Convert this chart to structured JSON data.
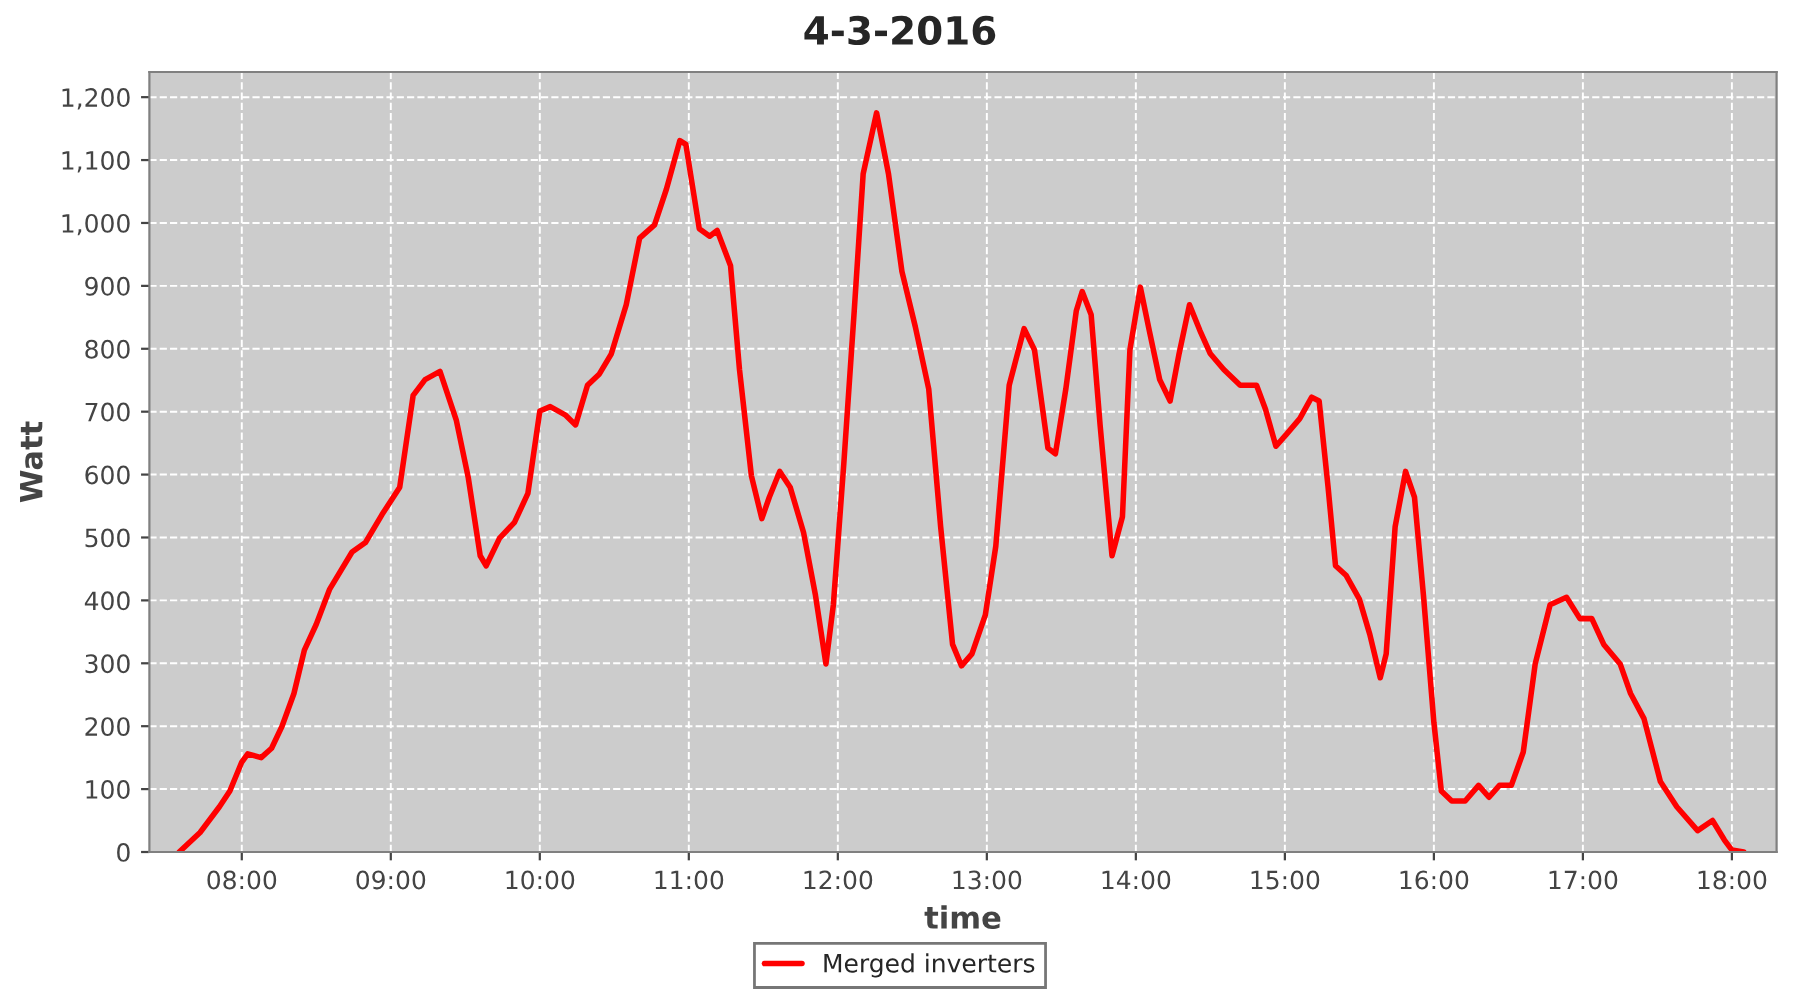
{
  "chart_data": {
    "type": "line",
    "title": "4-3-2016",
    "xlabel": "time",
    "ylabel": "Watt",
    "x": [
      7.58,
      7.72,
      7.85,
      7.92,
      8.0,
      8.04,
      8.13,
      8.2,
      8.27,
      8.35,
      8.42,
      8.5,
      8.59,
      8.74,
      8.83,
      8.94,
      9.06,
      9.15,
      9.23,
      9.33,
      9.44,
      9.52,
      9.6,
      9.64,
      9.73,
      9.83,
      9.92,
      10.0,
      10.07,
      10.17,
      10.24,
      10.32,
      10.4,
      10.48,
      10.58,
      10.67,
      10.77,
      10.85,
      10.94,
      10.98,
      11.07,
      11.14,
      11.19,
      11.28,
      11.34,
      11.42,
      11.49,
      11.54,
      11.61,
      11.68,
      11.77,
      11.85,
      11.92,
      11.97,
      12.04,
      12.11,
      12.17,
      12.26,
      12.34,
      12.43,
      12.52,
      12.61,
      12.69,
      12.77,
      12.83,
      12.9,
      12.99,
      13.06,
      13.15,
      13.25,
      13.32,
      13.41,
      13.46,
      13.53,
      13.6,
      13.64,
      13.7,
      13.76,
      13.84,
      13.91,
      13.96,
      14.03,
      14.09,
      14.16,
      14.23,
      14.29,
      14.36,
      14.43,
      14.5,
      14.59,
      14.7,
      14.81,
      14.87,
      14.94,
      15.01,
      15.1,
      15.18,
      15.23,
      15.29,
      15.34,
      15.41,
      15.5,
      15.57,
      15.64,
      15.68,
      15.74,
      15.81,
      15.87,
      15.93,
      16.0,
      16.05,
      16.12,
      16.21,
      16.3,
      16.37,
      16.44,
      16.52,
      16.6,
      16.68,
      16.78,
      16.89,
      16.98,
      17.06,
      17.14,
      17.25,
      17.32,
      17.41,
      17.52,
      17.63,
      17.77,
      17.87,
      17.95,
      18.0,
      18.08
    ],
    "series": [
      {
        "name": "Merged inverters",
        "color": "#ff0000",
        "values": [
          0,
          31,
          72,
          97,
          143,
          156,
          150,
          165,
          200,
          252,
          321,
          362,
          418,
          477,
          492,
          536,
          580,
          726,
          751,
          764,
          686,
          595,
          471,
          455,
          499,
          524,
          570,
          701,
          708,
          695,
          679,
          742,
          760,
          792,
          870,
          976,
          997,
          1054,
          1131,
          1125,
          991,
          979,
          988,
          932,
          767,
          598,
          530,
          564,
          605,
          580,
          508,
          408,
          299,
          393,
          617,
          860,
          1078,
          1175,
          1078,
          923,
          835,
          736,
          517,
          330,
          296,
          315,
          377,
          486,
          742,
          832,
          798,
          642,
          633,
          736,
          860,
          891,
          854,
          679,
          471,
          533,
          798,
          898,
          829,
          751,
          717,
          792,
          870,
          829,
          792,
          767,
          742,
          742,
          704,
          645,
          664,
          689,
          723,
          717,
          580,
          455,
          440,
          402,
          346,
          277,
          315,
          517,
          605,
          564,
          408,
          206,
          97,
          81,
          81,
          106,
          87,
          106,
          106,
          159,
          299,
          393,
          405,
          371,
          371,
          330,
          299,
          252,
          212,
          112,
          72,
          34,
          50,
          19,
          3,
          0
        ]
      }
    ],
    "xlim": [
      7.38,
      18.3
    ],
    "xticks": [
      {
        "value": 8,
        "label": "08:00"
      },
      {
        "value": 9,
        "label": "09:00"
      },
      {
        "value": 10,
        "label": "10:00"
      },
      {
        "value": 11,
        "label": "11:00"
      },
      {
        "value": 12,
        "label": "12:00"
      },
      {
        "value": 13,
        "label": "13:00"
      },
      {
        "value": 14,
        "label": "14:00"
      },
      {
        "value": 15,
        "label": "15:00"
      },
      {
        "value": 16,
        "label": "16:00"
      },
      {
        "value": 17,
        "label": "17:00"
      },
      {
        "value": 18,
        "label": "18:00"
      }
    ],
    "ylim": [
      0,
      1240
    ],
    "yticks": [
      0,
      100,
      200,
      300,
      400,
      500,
      600,
      700,
      800,
      900,
      {
        "value": 1000,
        "label": "1,000"
      },
      {
        "value": 1100,
        "label": "1,100"
      },
      {
        "value": 1200,
        "label": "1,200"
      }
    ],
    "grid": true,
    "legend": "bottom",
    "line_style": "solid"
  }
}
